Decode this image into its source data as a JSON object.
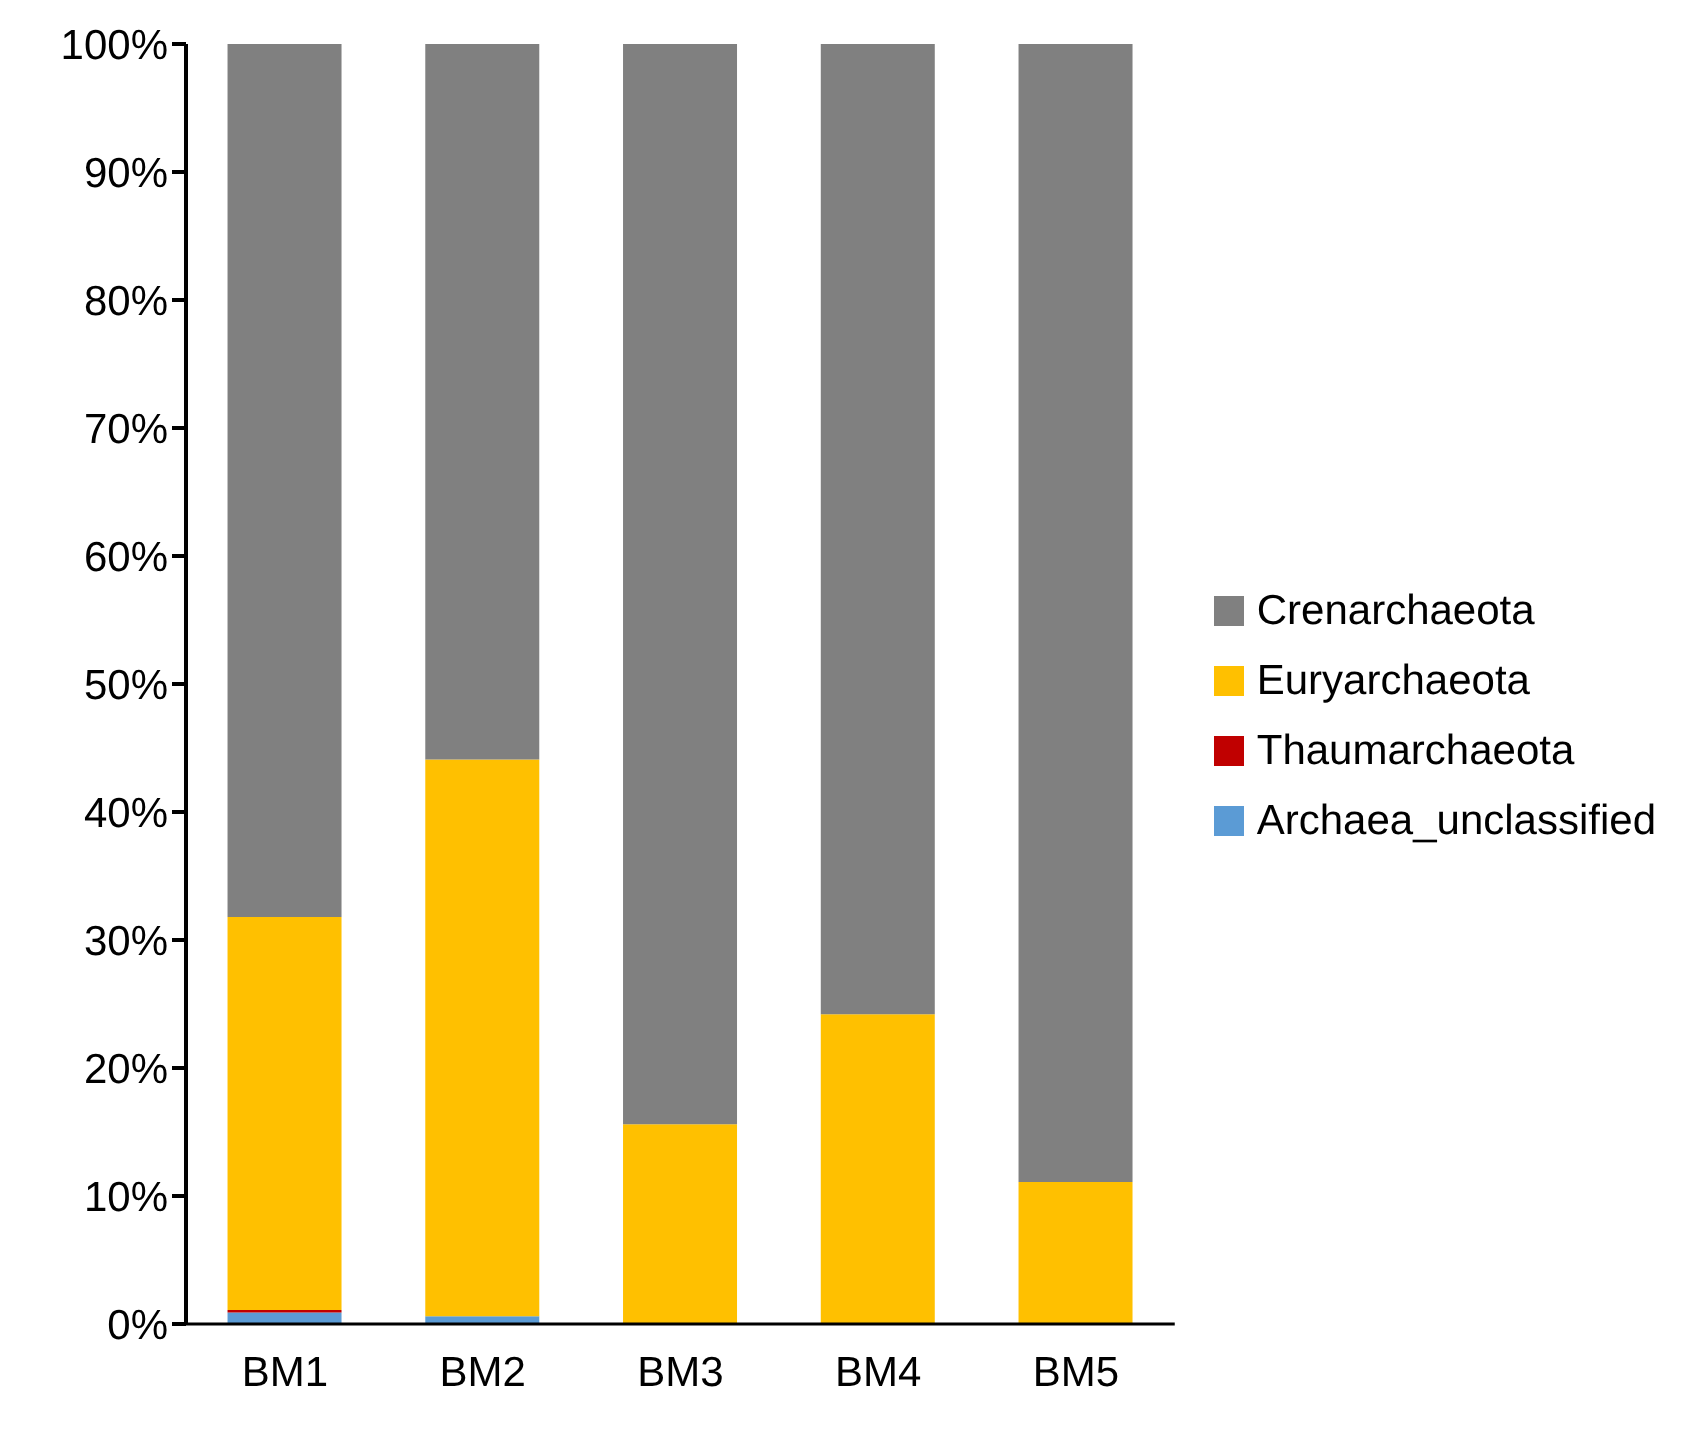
{
  "chart_data": {
    "type": "bar",
    "stacked": true,
    "categories": [
      "BM1",
      "BM2",
      "BM3",
      "BM4",
      "BM5"
    ],
    "series": [
      {
        "name": "Archaea_unclassified",
        "color": "#5b9bd5",
        "values": [
          0.9,
          0.6,
          0,
          0,
          0
        ]
      },
      {
        "name": "Thaumarchaeota",
        "color": "#c00000",
        "values": [
          0.2,
          0,
          0,
          0,
          0
        ]
      },
      {
        "name": "Euryarchaeota",
        "color": "#ffc000",
        "values": [
          30.7,
          43.5,
          15.6,
          24.2,
          11.1
        ]
      },
      {
        "name": "Crenarchaeota",
        "color": "#808080",
        "values": [
          68.2,
          56,
          84.4,
          75.8,
          88.9
        ]
      }
    ],
    "ylim": [
      0,
      100
    ],
    "yticks": [
      {
        "value": 0,
        "label": "0%"
      },
      {
        "value": 10,
        "label": "10%"
      },
      {
        "value": 20,
        "label": "20%"
      },
      {
        "value": 30,
        "label": "30%"
      },
      {
        "value": 40,
        "label": "40%"
      },
      {
        "value": 50,
        "label": "50%"
      },
      {
        "value": 60,
        "label": "60%"
      },
      {
        "value": 70,
        "label": "70%"
      },
      {
        "value": 80,
        "label": "80%"
      },
      {
        "value": 90,
        "label": "90%"
      },
      {
        "value": 100,
        "label": "100%"
      }
    ],
    "grid": false,
    "legend": "right"
  }
}
